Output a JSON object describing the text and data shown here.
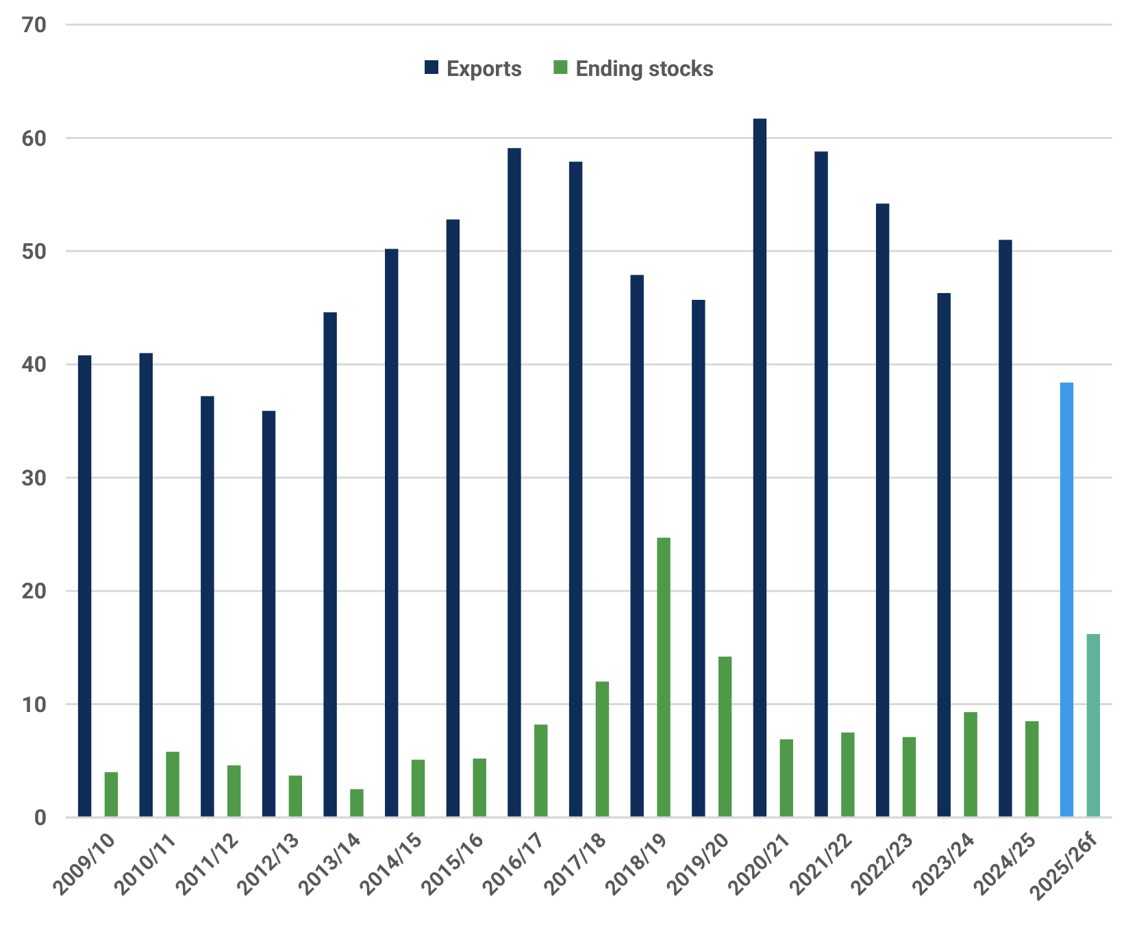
{
  "chart_data": {
    "type": "bar",
    "categories": [
      "2009/10",
      "2010/11",
      "2011/12",
      "2012/13",
      "2013/14",
      "2014/15",
      "2015/16",
      "2016/17",
      "2017/18",
      "2018/19",
      "2019/20",
      "2020/21",
      "2021/22",
      "2022/23",
      "2023/24",
      "2024/25",
      "2025/26f"
    ],
    "series": [
      {
        "name": "Exports",
        "color": "#0e2d59",
        "colors": [
          "#0e2d59",
          "#0e2d59",
          "#0e2d59",
          "#0e2d59",
          "#0e2d59",
          "#0e2d59",
          "#0e2d59",
          "#0e2d59",
          "#0e2d59",
          "#0e2d59",
          "#0e2d59",
          "#0e2d59",
          "#0e2d59",
          "#0e2d59",
          "#0e2d59",
          "#0e2d59",
          "#3d9be9"
        ],
        "values": [
          40.8,
          41.0,
          37.2,
          35.9,
          44.6,
          50.2,
          52.8,
          59.1,
          57.9,
          47.9,
          45.7,
          61.7,
          58.8,
          54.2,
          46.3,
          51.0,
          38.4
        ]
      },
      {
        "name": "Ending stocks",
        "color": "#4e9a48",
        "colors": [
          "#4e9a48",
          "#4e9a48",
          "#4e9a48",
          "#4e9a48",
          "#4e9a48",
          "#4e9a48",
          "#4e9a48",
          "#4e9a48",
          "#4e9a48",
          "#4e9a48",
          "#4e9a48",
          "#4e9a48",
          "#4e9a48",
          "#4e9a48",
          "#4e9a48",
          "#4e9a48",
          "#5fb39a"
        ],
        "values": [
          4.0,
          5.8,
          4.6,
          3.7,
          2.5,
          5.1,
          5.2,
          8.2,
          12.0,
          24.7,
          14.2,
          6.9,
          7.5,
          7.1,
          9.3,
          8.5,
          16.2
        ]
      }
    ],
    "ylim": [
      0,
      70
    ],
    "yticks": [
      0,
      10,
      20,
      30,
      40,
      50,
      60,
      70
    ],
    "grid": "y",
    "legend": "top"
  }
}
